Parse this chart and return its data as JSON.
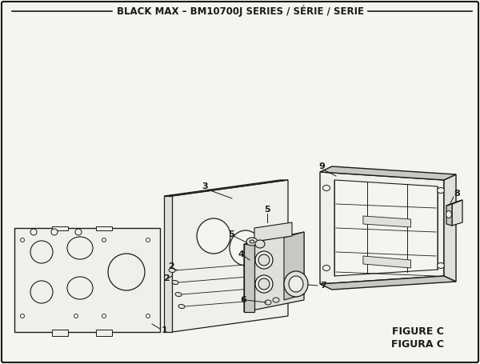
{
  "title": "BLACK MAX – BM10700J SERIES / SÉRIE / SERIE",
  "figure_label": "FIGURE C",
  "figura_label": "FIGURA C",
  "bg_color": "#f5f5f0",
  "border_color": "#1a1a1a",
  "line_color": "#1a1a1a",
  "fill_light": "#f0f0eb",
  "fill_mid": "#e0e0db",
  "fill_dark": "#c8c8c3",
  "title_fontsize": 8.5,
  "label_fontsize": 8
}
